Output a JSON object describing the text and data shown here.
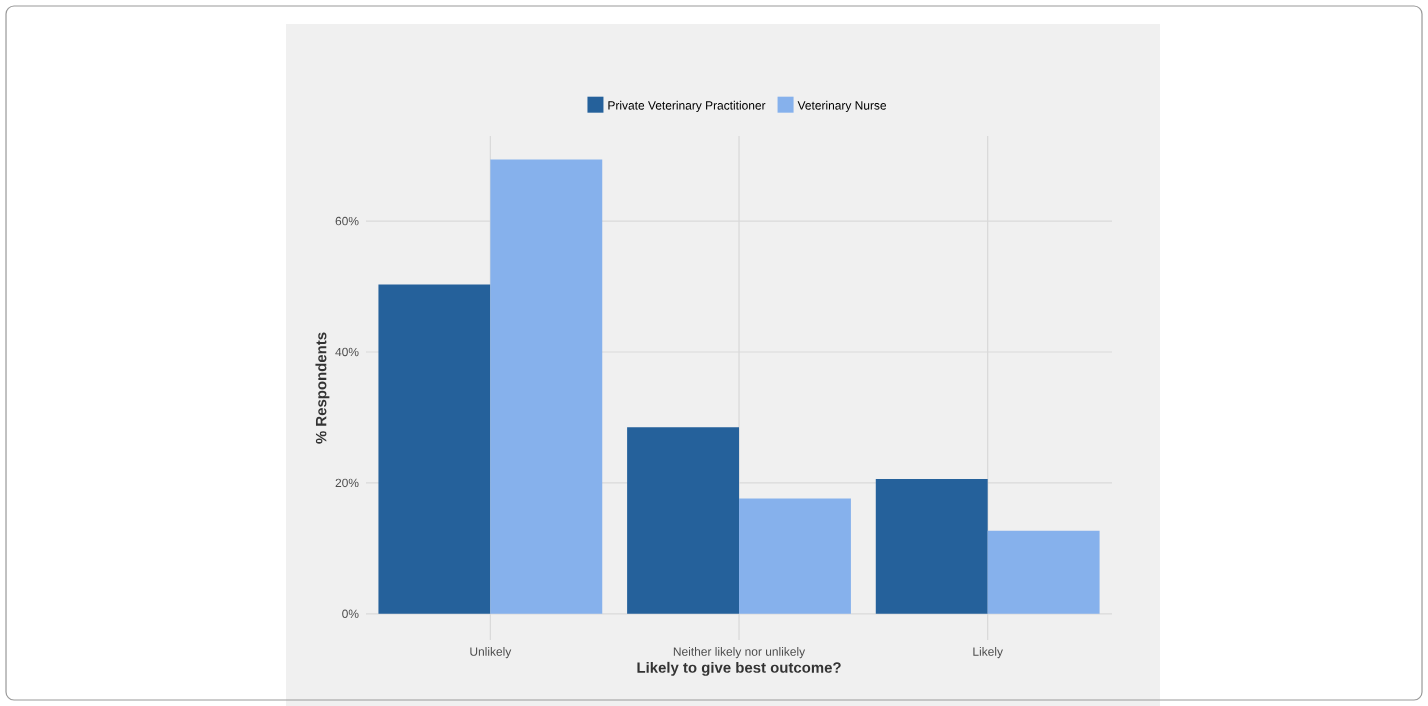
{
  "chart_data": {
    "type": "bar",
    "xlabel": "Likely to give best outcome?",
    "ylabel": "% Respondents",
    "categories": [
      "Unlikely",
      "Neither likely nor unlikely",
      "Likely"
    ],
    "series": [
      {
        "name": "Private Veterinary Practitioner",
        "color": "#25619b",
        "values": [
          50.3,
          28.5,
          20.6
        ]
      },
      {
        "name": "Veterinary Nurse",
        "color": "#86b1ec",
        "values": [
          69.4,
          17.6,
          12.7
        ]
      }
    ],
    "ylim": [
      -4,
      73
    ],
    "yticks": [
      {
        "value": 0,
        "label": "0%"
      },
      {
        "value": 20,
        "label": "20%"
      },
      {
        "value": 40,
        "label": "40%"
      },
      {
        "value": 60,
        "label": "60%"
      }
    ],
    "grid": true,
    "legend": "top"
  }
}
